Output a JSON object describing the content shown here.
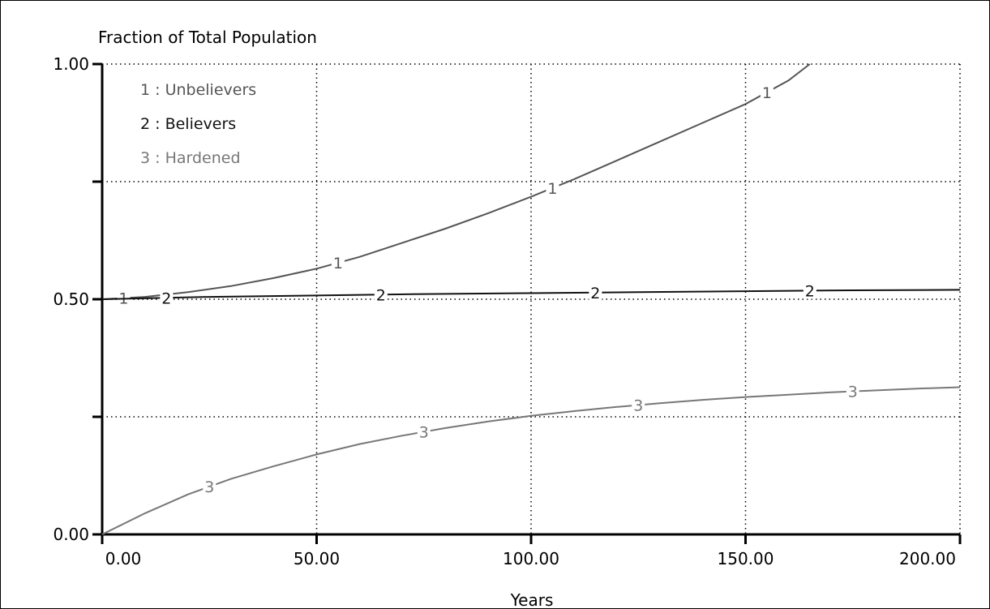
{
  "chart_data": {
    "type": "line",
    "title": "Fraction of Total Population",
    "xlabel": "Years",
    "ylabel": "",
    "xlim": [
      0,
      200
    ],
    "ylim": [
      0,
      1
    ],
    "grid": true,
    "legend_placement": "top-left",
    "x_ticks": [
      {
        "value": 0,
        "label": "0.00"
      },
      {
        "value": 50,
        "label": "50.00"
      },
      {
        "value": 100,
        "label": "100.00"
      },
      {
        "value": 150,
        "label": "150.00"
      },
      {
        "value": 200,
        "label": "200.00"
      }
    ],
    "y_ticks": [
      {
        "value": 0,
        "label": "0.00"
      },
      {
        "value": 0.25,
        "label": ""
      },
      {
        "value": 0.5,
        "label": "0.50"
      },
      {
        "value": 0.75,
        "label": ""
      },
      {
        "value": 1.0,
        "label": "1.00"
      }
    ],
    "series": [
      {
        "name": "Unbelievers",
        "legend_label": "1 : Unbelievers",
        "marker": "1",
        "color": "#555555",
        "x": [
          0,
          10,
          20,
          30,
          40,
          50,
          60,
          70,
          80,
          90,
          100,
          110,
          120,
          130,
          140,
          150,
          160,
          165
        ],
        "values": [
          0.5,
          0.505,
          0.515,
          0.528,
          0.545,
          0.565,
          0.59,
          0.62,
          0.65,
          0.683,
          0.718,
          0.755,
          0.795,
          0.835,
          0.875,
          0.915,
          0.965,
          1.0
        ],
        "marker_x": [
          5,
          55,
          105,
          155
        ]
      },
      {
        "name": "Believers",
        "legend_label": "2 : Believers",
        "marker": "2",
        "color": "#111111",
        "x": [
          0,
          25,
          50,
          75,
          100,
          125,
          150,
          175,
          200
        ],
        "values": [
          0.5,
          0.505,
          0.508,
          0.511,
          0.513,
          0.515,
          0.517,
          0.519,
          0.52
        ],
        "marker_x": [
          15,
          65,
          115,
          165
        ]
      },
      {
        "name": "Hardened",
        "legend_label": "3 : Hardened",
        "marker": "3",
        "color": "#777777",
        "x": [
          0,
          10,
          20,
          30,
          40,
          50,
          60,
          70,
          80,
          90,
          100,
          110,
          120,
          130,
          140,
          150,
          160,
          170,
          180,
          190,
          200
        ],
        "values": [
          0.0,
          0.045,
          0.085,
          0.118,
          0.145,
          0.17,
          0.192,
          0.21,
          0.226,
          0.24,
          0.252,
          0.262,
          0.271,
          0.279,
          0.286,
          0.292,
          0.297,
          0.302,
          0.306,
          0.31,
          0.313
        ],
        "marker_x": [
          25,
          75,
          125,
          175
        ]
      }
    ]
  }
}
